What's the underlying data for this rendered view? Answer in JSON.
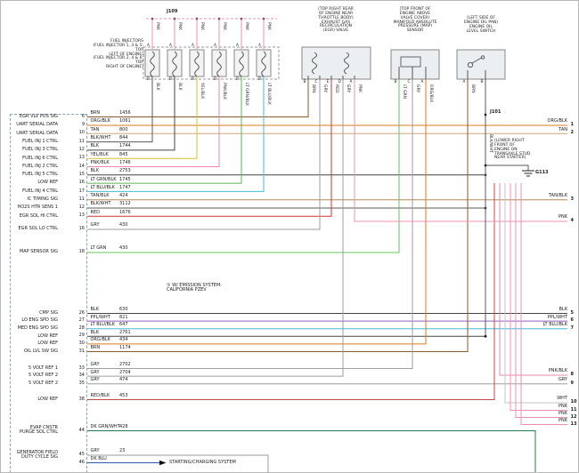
{
  "diagram": {
    "junctions": {
      "j109": "J109",
      "j101": "J101",
      "g113": "G113"
    },
    "notes": {
      "emission": "① W/ EMISSION SYSTEM-\nCALIFORNIA PZEV",
      "starting": "STARTING/CHARGING SYSTEM"
    },
    "component_labels": {
      "fuel_injectors": "FUEL INJECTORS\n(FUEL INJECTOR 1, 3 & 5: TOP\nLEFT OF ENGINE)\n(FUEL INJECTOR 2, 4 & 6: TOP\nRIGHT OF ENGINE)",
      "egr": "(TOP RIGHT REAR\nOF ENGINE NEAR\nTHROTTLE BODY)\nEXHAUST GAS\nRECIRCULATION\n(EGR) VALVE",
      "map": "(TOP FRONT OF\nENGINE ABOVE\nVALVE COVER)\nMANIFOLD ABSOLUTE\nPRESSURE (MAP)\nSENSOR",
      "oil_switch": "(LEFT SIDE OF\nENGINE OIL PAN)\nENGINE OIL\nLEVEL SWITCH",
      "ground_note": "(LOWER RIGHT\nFRONT OF\nENGINE ON\nTRANSAXLE STUD\nNEAR STARTER)"
    },
    "pcm_rows": [
      {
        "signal": "EGR VLV POS SIG",
        "pin": "6",
        "color": "BRN",
        "circuit": "1456"
      },
      {
        "signal": "UART SERIAL DATA",
        "pin": "9",
        "color": "ORG/BLK",
        "circuit": "1061"
      },
      {
        "signal": "UART SERIAL DATA",
        "pin": "10",
        "color": "TAN",
        "circuit": "800"
      },
      {
        "signal": "FUEL INJ 1 CTRL",
        "pin": "11",
        "color": "BLK/WHT",
        "circuit": "844"
      },
      {
        "signal": "FUEL INJ 3 CTRL",
        "pin": "12",
        "color": "BLK",
        "circuit": "1744"
      },
      {
        "signal": "FUEL INJ 6 CTRL",
        "pin": "13",
        "color": "YEL/BLK",
        "circuit": "845"
      },
      {
        "signal": "FUEL INJ 2 CTRL",
        "pin": "14",
        "color": "PNK/BLK",
        "circuit": "1746"
      },
      {
        "signal": "FUEL INJ 5 CTRL",
        "pin": "15",
        "color": "BLK",
        "circuit": "2753"
      },
      {
        "signal": "LOW REF",
        "pin": "16",
        "color": "LT GRN/BLK",
        "circuit": "1745"
      },
      {
        "signal": "FUEL INJ 4 CTRL",
        "pin": "17",
        "color": "LT BLU/BLK",
        "circuit": "1747"
      },
      {
        "signal": "IC TIMING SIG",
        "pin": "11",
        "color": "TAN/BLK",
        "circuit": "424"
      },
      {
        "signal": "HO2S HTR SENS 1",
        "pin": "12",
        "color": "BLK/WHT",
        "circuit": "3112"
      },
      {
        "signal": "EGR SOL HI CTRL",
        "pin": "13",
        "color": "RED",
        "circuit": "1676"
      },
      {
        "signal": "EGR SOL LO CTRL",
        "pin": "16",
        "color": "GRY",
        "circuit": "430"
      },
      {
        "signal": "MAP SENSOR SIG",
        "pin": "18",
        "color": "LT GRN",
        "circuit": "430"
      },
      {
        "signal": "CMP SIG",
        "pin": "26",
        "color": "BLK",
        "circuit": "630"
      },
      {
        "signal": "LO ENG SPD SIG",
        "pin": "27",
        "color": "PPL/WHT",
        "circuit": "821"
      },
      {
        "signal": "MED ENG SPD SIG",
        "pin": "28",
        "color": "LT BLU/BLK",
        "circuit": "647"
      },
      {
        "signal": "LOW REF",
        "pin": "29",
        "color": "BLK",
        "circuit": "2761"
      },
      {
        "signal": "LOW REF",
        "pin": "30",
        "color": "ORG/BLK",
        "circuit": "434"
      },
      {
        "signal": "OIL LVL SW SIG",
        "pin": "31",
        "color": "BRN",
        "circuit": "1174"
      },
      {
        "signal": "5 VOLT REF 1",
        "pin": "33",
        "color": "GRY",
        "circuit": "2702"
      },
      {
        "signal": "5 VOLT REF 2",
        "pin": "34",
        "color": "GRY",
        "circuit": "2704"
      },
      {
        "signal": "5 VOLT REF 2",
        "pin": "35",
        "color": "GRY",
        "circuit": "474"
      },
      {
        "signal": "LOW REF",
        "pin": "38",
        "color": "RED/BLK",
        "circuit": "453"
      },
      {
        "signal": "EVAP CNSTR\nPURGE SOL CTRL",
        "pin": "44",
        "color": "DK GRN/WHT",
        "circuit": "428"
      },
      {
        "signal": "GENERATOR FIELD\nDUTY CYCLE SIG",
        "pin": "45",
        "color": "GRY",
        "circuit": "23"
      },
      {
        "signal": "",
        "pin": "46",
        "color": "DK BLU",
        "circuit": ""
      }
    ],
    "right_exits": [
      {
        "color": "ORG/BLK",
        "num": "1"
      },
      {
        "color": "TAN",
        "num": "2"
      },
      {
        "color": "TAN/BLK",
        "num": "3"
      },
      {
        "color": "PNK",
        "num": "4"
      },
      {
        "color": "BLK",
        "num": "5"
      },
      {
        "color": "PPL/WHT",
        "num": "6"
      },
      {
        "color": "LT BLU/BLK",
        "num": "7"
      },
      {
        "color": "PNK/BLK",
        "num": "8"
      },
      {
        "color": "GRY",
        "num": "9"
      },
      {
        "color": "WHT",
        "num": "10"
      },
      {
        "color": "PNK",
        "num": "11"
      },
      {
        "color": "PNK",
        "num": "12"
      },
      {
        "color": "PNK",
        "num": "13"
      }
    ],
    "injectors": {
      "top_wire": "PNK",
      "bottom_wires": [
        "BLK",
        "BLK",
        "YEL/BLK",
        "PNK/BLK",
        "LT GRN/BLK",
        "LT BLU/BLK"
      ],
      "pin_top": "A",
      "pin_bottom": "B"
    },
    "component_pins": {
      "egr": [
        "B",
        "C",
        "E",
        "D",
        "A"
      ],
      "map": [
        "B",
        "C",
        "A"
      ],
      "oil_switch": [
        "A",
        "B"
      ]
    },
    "vertical_labels": {
      "egr": [
        "BRN",
        "GRY",
        "RED",
        "GRY",
        "PNK"
      ],
      "map": [
        "LT GRN",
        "GRY",
        "ORG/BLK"
      ],
      "oil_switch": [
        "BRN",
        "BLK/WHT"
      ]
    },
    "wire_colors": {
      "PNK": "#ef8fb5",
      "BRN": "#8a5a2a",
      "ORG/BLK": "#e07818",
      "TAN": "#c9a878",
      "BLK/WHT": "#5a5a5a",
      "BLK": "#454545",
      "YEL/BLK": "#d4c02e",
      "PNK/BLK": "#e888b0",
      "LT GRN/BLK": "#55b855",
      "LT BLU/BLK": "#45bcd8",
      "TAN/BLK": "#b08a58",
      "RED": "#d83232",
      "GRY": "#9e9e9e",
      "LT GRN": "#68c45e",
      "PPL/WHT": "#8f62c2",
      "RED/BLK": "#c24848",
      "DK GRN/WHT": "#1f7a4d",
      "DK BLU": "#2f55b5",
      "WHT": "#c6c6c6"
    }
  }
}
